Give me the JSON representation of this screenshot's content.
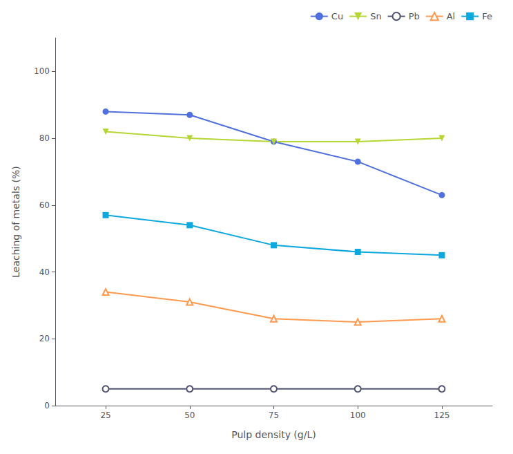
{
  "chart_data": {
    "type": "line",
    "xlabel": "Pulp density (g/L)",
    "ylabel": "Leaching of metals (%)",
    "x": [
      25,
      50,
      75,
      100,
      125
    ],
    "series": [
      {
        "name": "Cu",
        "marker": "circle",
        "values": [
          88,
          87,
          79,
          73,
          63
        ]
      },
      {
        "name": "Sn",
        "marker": "triangle-down",
        "values": [
          82,
          80,
          79,
          79,
          80
        ]
      },
      {
        "name": "Pb",
        "marker": "circle-open",
        "values": [
          5,
          5,
          5,
          5,
          5
        ]
      },
      {
        "name": "Al",
        "marker": "triangle-open",
        "values": [
          34,
          31,
          26,
          25,
          26
        ]
      },
      {
        "name": "Fe",
        "marker": "square",
        "values": [
          57,
          54,
          48,
          46,
          45
        ]
      }
    ],
    "xlim": [
      10,
      140
    ],
    "xticks": [
      25,
      50,
      75,
      100,
      125
    ],
    "ylim": [
      0,
      110
    ],
    "yticks": [
      0,
      20,
      40,
      60,
      80,
      100
    ],
    "grid": false,
    "legend": "upper right"
  }
}
